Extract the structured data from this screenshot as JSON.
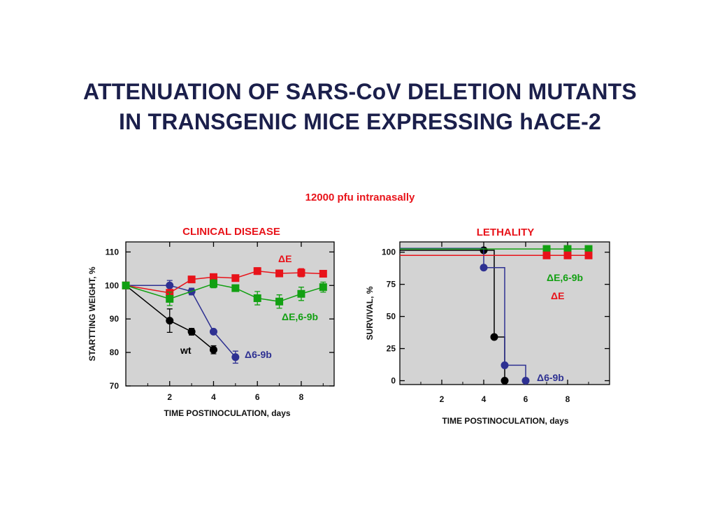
{
  "title_line1": "ATTENUATION OF SARS-CoV DELETION MUTANTS",
  "title_line2": "IN TRANSGENIC MICE EXPRESSING hACE-2",
  "subtitle": "12000 pfu intranasally",
  "colors": {
    "wt": "#000000",
    "d69b": "#2e3192",
    "dE": "#e8131a",
    "dE69b": "#12a012",
    "panel": "#d3d3d3",
    "title": "#1b1f4b"
  },
  "chart_data": [
    {
      "type": "line",
      "title": "CLINICAL DISEASE",
      "xlabel": "TIME POSTINOCULATION, days",
      "ylabel": "STARTTING WEIGHT, %",
      "xlim": [
        0,
        9.5
      ],
      "ylim": [
        70,
        113
      ],
      "xticks": [
        2,
        4,
        6,
        8
      ],
      "yticks": [
        70,
        80,
        90,
        100,
        110
      ],
      "series": [
        {
          "name": "wt",
          "label": "wt",
          "color_key": "wt",
          "marker": "circle",
          "x": [
            0,
            2,
            3,
            4
          ],
          "y": [
            100,
            89.5,
            86.2,
            80.8
          ],
          "err": [
            0,
            3.5,
            1,
            1.2
          ]
        },
        {
          "name": "Δ6-9b",
          "label": "Δ6-9b",
          "color_key": "d69b",
          "marker": "circle",
          "x": [
            0,
            2,
            3,
            4,
            5
          ],
          "y": [
            100,
            100,
            98.2,
            86.2,
            78.6
          ],
          "err": [
            0,
            1.5,
            1,
            0,
            1.8
          ]
        },
        {
          "name": "ΔE",
          "label": "ΔE",
          "color_key": "dE",
          "marker": "square",
          "x": [
            0,
            2,
            3,
            4,
            5,
            6,
            7,
            8,
            9
          ],
          "y": [
            100,
            97.8,
            101.8,
            102.5,
            102.2,
            104.3,
            103.6,
            103.8,
            103.5
          ],
          "err": [
            0,
            1,
            0.5,
            0.5,
            0.5,
            1,
            0.5,
            1.2,
            0.5
          ]
        },
        {
          "name": "ΔE,6-9b",
          "label": "ΔE,6-9b",
          "color_key": "dE69b",
          "marker": "square",
          "x": [
            0,
            2,
            4,
            5,
            6,
            7,
            8,
            9
          ],
          "y": [
            100,
            96,
            100.5,
            99.2,
            96.2,
            95.2,
            97.5,
            99.5
          ],
          "err": [
            0,
            2,
            1.2,
            0.8,
            2,
            2,
            2,
            1.5
          ]
        }
      ]
    },
    {
      "type": "line",
      "title": "LETHALITY",
      "xlabel": "TIME POSTINOCULATION, days",
      "ylabel": "SURVIVAL, %",
      "xlim": [
        0,
        10
      ],
      "ylim": [
        -3,
        108
      ],
      "xticks": [
        2,
        4,
        6,
        8
      ],
      "yticks": [
        0,
        25,
        50,
        75,
        100
      ],
      "series": [
        {
          "name": "wt",
          "color_key": "wt",
          "marker": "circle",
          "step": true,
          "x": [
            0,
            4,
            4.5,
            5
          ],
          "y": [
            101.5,
            101.5,
            34,
            0
          ]
        },
        {
          "name": "Δ6-9b",
          "label": "Δ6-9b",
          "color_key": "d69b",
          "marker": "circle",
          "step": true,
          "x": [
            0,
            4,
            5,
            6
          ],
          "y": [
            103,
            88,
            12,
            0
          ]
        },
        {
          "name": "ΔE,6-9b",
          "label": "ΔE,6-9b",
          "color_key": "dE69b",
          "marker": "square",
          "step": true,
          "x": [
            0,
            7,
            8,
            9
          ],
          "y": [
            102.5,
            102.5,
            102.5,
            102.5
          ]
        },
        {
          "name": "ΔE",
          "label": "ΔE",
          "color_key": "dE",
          "marker": "square",
          "step": true,
          "x": [
            0,
            7,
            8,
            9
          ],
          "y": [
            97.5,
            97.5,
            97.5,
            97.5
          ]
        }
      ]
    }
  ]
}
